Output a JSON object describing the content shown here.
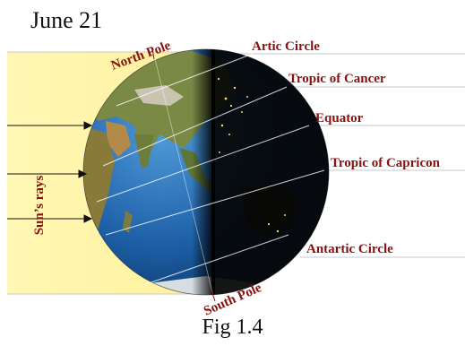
{
  "date": "June 21",
  "figure_caption": "Fig 1.4",
  "poles": {
    "north": "North Pole",
    "south": "South Pole"
  },
  "rays_label": "Sun’s rays",
  "latitude_labels": {
    "arctic": "Artic Circle",
    "cancer": "Tropic of Cancer",
    "equator": "Equator",
    "capricorn": "Tropic of Capricon",
    "antarctic": "Antartic Circle"
  },
  "colors": {
    "sunlight_band": "#fff6a8",
    "label_text": "#8a1010",
    "ocean": "#1d5fa6",
    "land": "#6b7a3a",
    "night": "#060606"
  }
}
